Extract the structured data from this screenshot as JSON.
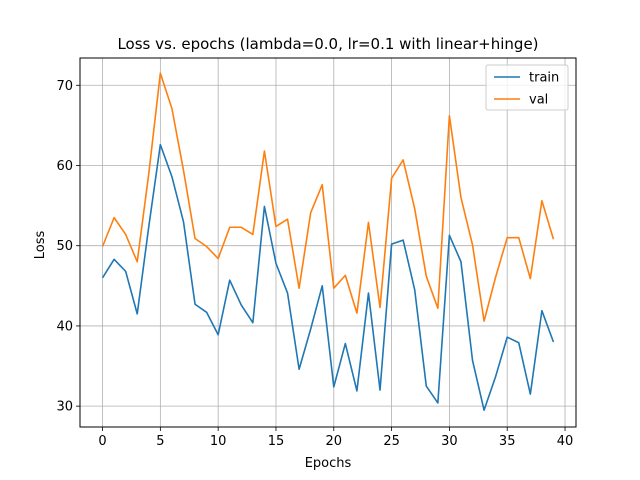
{
  "chart_data": {
    "type": "line",
    "title": "Loss vs. epochs (lambda=0.0, lr=0.1 with linear+hinge)",
    "xlabel": "Epochs",
    "ylabel": "Loss",
    "xlim": [
      -1.95,
      40.95
    ],
    "ylim": [
      27.4,
      73.4
    ],
    "xticks": [
      0,
      5,
      10,
      15,
      20,
      25,
      30,
      35,
      40
    ],
    "yticks": [
      30,
      40,
      50,
      60,
      70
    ],
    "grid": true,
    "legend_position": "top-right",
    "x": [
      0,
      1,
      2,
      3,
      4,
      5,
      6,
      7,
      8,
      9,
      10,
      11,
      12,
      13,
      14,
      15,
      16,
      17,
      18,
      19,
      20,
      21,
      22,
      23,
      24,
      25,
      26,
      27,
      28,
      29,
      30,
      31,
      32,
      33,
      34,
      35,
      36,
      37,
      38,
      39
    ],
    "series": [
      {
        "name": "train",
        "color": "#1f77b4",
        "values": [
          46.0,
          48.3,
          46.8,
          41.5,
          52.4,
          62.6,
          58.6,
          53.0,
          42.7,
          41.7,
          38.9,
          45.7,
          42.6,
          40.4,
          54.9,
          47.8,
          44.1,
          34.6,
          39.6,
          45.0,
          32.4,
          37.8,
          31.9,
          44.1,
          32.0,
          50.2,
          50.7,
          44.5,
          32.5,
          30.4,
          51.3,
          48.0,
          35.7,
          29.5,
          33.7,
          38.6,
          37.9,
          31.5,
          41.9,
          38.0
        ]
      },
      {
        "name": "val",
        "color": "#ff7f0e",
        "values": [
          49.9,
          53.5,
          51.4,
          48.0,
          59.0,
          71.5,
          67.1,
          59.4,
          50.9,
          49.9,
          48.4,
          52.3,
          52.3,
          51.4,
          61.8,
          52.4,
          53.3,
          44.7,
          54.1,
          57.6,
          44.7,
          46.3,
          41.6,
          52.9,
          42.3,
          58.4,
          60.7,
          54.6,
          46.2,
          42.2,
          66.2,
          56.0,
          50.1,
          40.6,
          46.1,
          51.0,
          51.0,
          45.9,
          55.6,
          50.8
        ]
      }
    ]
  }
}
